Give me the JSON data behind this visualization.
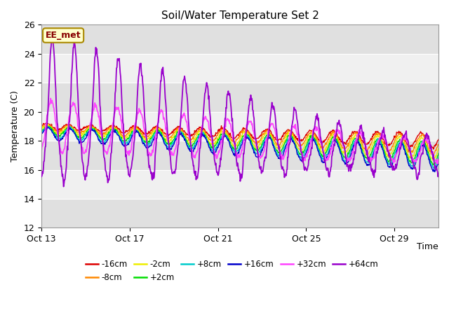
{
  "title": "Soil/Water Temperature Set 2",
  "xlabel": "Time",
  "ylabel": "Temperature (C)",
  "ylim": [
    12,
    26
  ],
  "yticks": [
    12,
    14,
    16,
    18,
    20,
    22,
    24,
    26
  ],
  "x_tick_days": [
    0,
    4,
    8,
    12,
    16
  ],
  "x_tick_labels": [
    "Oct 13",
    "Oct 17",
    "Oct 21",
    "Oct 25",
    "Oct 29"
  ],
  "annotation_text": "EE_met",
  "annotation_bg": "#ffffcc",
  "annotation_border": "#aa8800",
  "annotation_text_color": "#880000",
  "background_color": "#ffffff",
  "plot_bg_light": "#f0f0f0",
  "plot_bg_dark": "#e0e0e0",
  "grid_color": "#ffffff",
  "series": [
    {
      "label": "-16cm",
      "color": "#dd0000"
    },
    {
      "label": "-8cm",
      "color": "#ff8800"
    },
    {
      "label": "-2cm",
      "color": "#eeee00"
    },
    {
      "label": "+2cm",
      "color": "#00dd00"
    },
    {
      "label": "+8cm",
      "color": "#00cccc"
    },
    {
      "label": "+16cm",
      "color": "#0000cc"
    },
    {
      "label": "+32cm",
      "color": "#ff44ff"
    },
    {
      "label": "+64cm",
      "color": "#9900cc"
    }
  ],
  "n_days": 18,
  "pts_per_day": 48
}
